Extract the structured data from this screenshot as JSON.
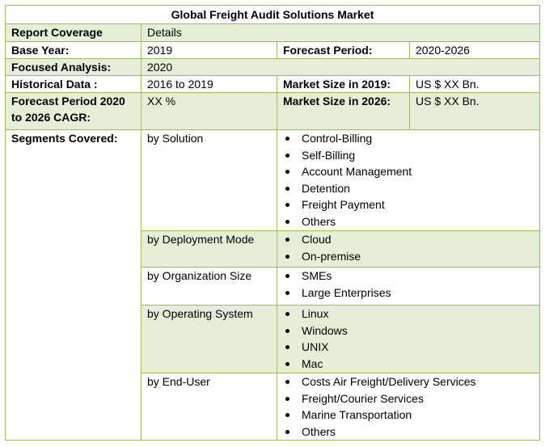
{
  "title": "Global Freight Audit Solutions Market",
  "colors": {
    "border": "#9bbb59",
    "shade": "#e6eed8"
  },
  "rows": {
    "coverage": {
      "label": "Report Coverage",
      "value": "Details"
    },
    "base_year": {
      "label": "Base Year:",
      "value": "2019",
      "label2": "Forecast Period:",
      "value2": "2020-2026"
    },
    "focused": {
      "label": "Focused Analysis:",
      "value": "2020"
    },
    "historical": {
      "label": "Historical Data :",
      "value": "2016 to 2019",
      "label2": "Market Size in 2019:",
      "value2": "US $ XX Bn."
    },
    "cagr": {
      "label": "Forecast Period 2020 to 2026 CAGR:",
      "value": "XX %",
      "label2": "Market Size in 2026:",
      "value2": "US $ XX Bn."
    }
  },
  "segments": {
    "label": "Segments Covered:",
    "groups": [
      {
        "name": "by Solution",
        "items": [
          "Control-Billing",
          "Self-Billing",
          "Account Management",
          "Detention",
          "Freight Payment",
          "Others"
        ]
      },
      {
        "name": "by Deployment Mode",
        "items": [
          "Cloud",
          "On-premise"
        ]
      },
      {
        "name": "by Organization Size",
        "items": [
          "SMEs",
          "Large Enterprises"
        ]
      },
      {
        "name": "by Operating System",
        "items": [
          "Linux",
          "Windows",
          "UNIX",
          "Mac"
        ]
      },
      {
        "name": "by End-User",
        "items": [
          "Costs Air Freight/Delivery Services",
          "Freight/Courier Services",
          "Marine Transportation",
          "Others"
        ]
      }
    ]
  }
}
